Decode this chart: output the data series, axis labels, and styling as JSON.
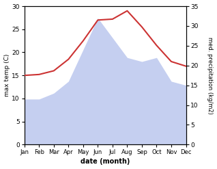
{
  "months": [
    "Jan",
    "Feb",
    "Mar",
    "Apr",
    "May",
    "Jun",
    "Jul",
    "Aug",
    "Sep",
    "Oct",
    "Nov",
    "Dec"
  ],
  "temperature": [
    15.0,
    15.2,
    16.0,
    18.5,
    22.5,
    27.0,
    27.2,
    29.0,
    25.5,
    21.5,
    18.0,
    17.0
  ],
  "precipitation": [
    11.5,
    11.5,
    13.0,
    16.0,
    24.0,
    32.0,
    27.0,
    22.0,
    21.0,
    22.0,
    16.0,
    15.0
  ],
  "temp_color": "#cc3333",
  "precip_color": "#c5cff0",
  "temp_ylim": [
    0,
    30
  ],
  "precip_ylim": [
    0,
    35
  ],
  "temp_yticks": [
    0,
    5,
    10,
    15,
    20,
    25,
    30
  ],
  "precip_yticks": [
    0,
    5,
    10,
    15,
    20,
    25,
    30,
    35
  ],
  "xlabel": "date (month)",
  "ylabel_left": "max temp (C)",
  "ylabel_right": "med. precipitation (kg/m2)",
  "bg_color": "#ffffff"
}
